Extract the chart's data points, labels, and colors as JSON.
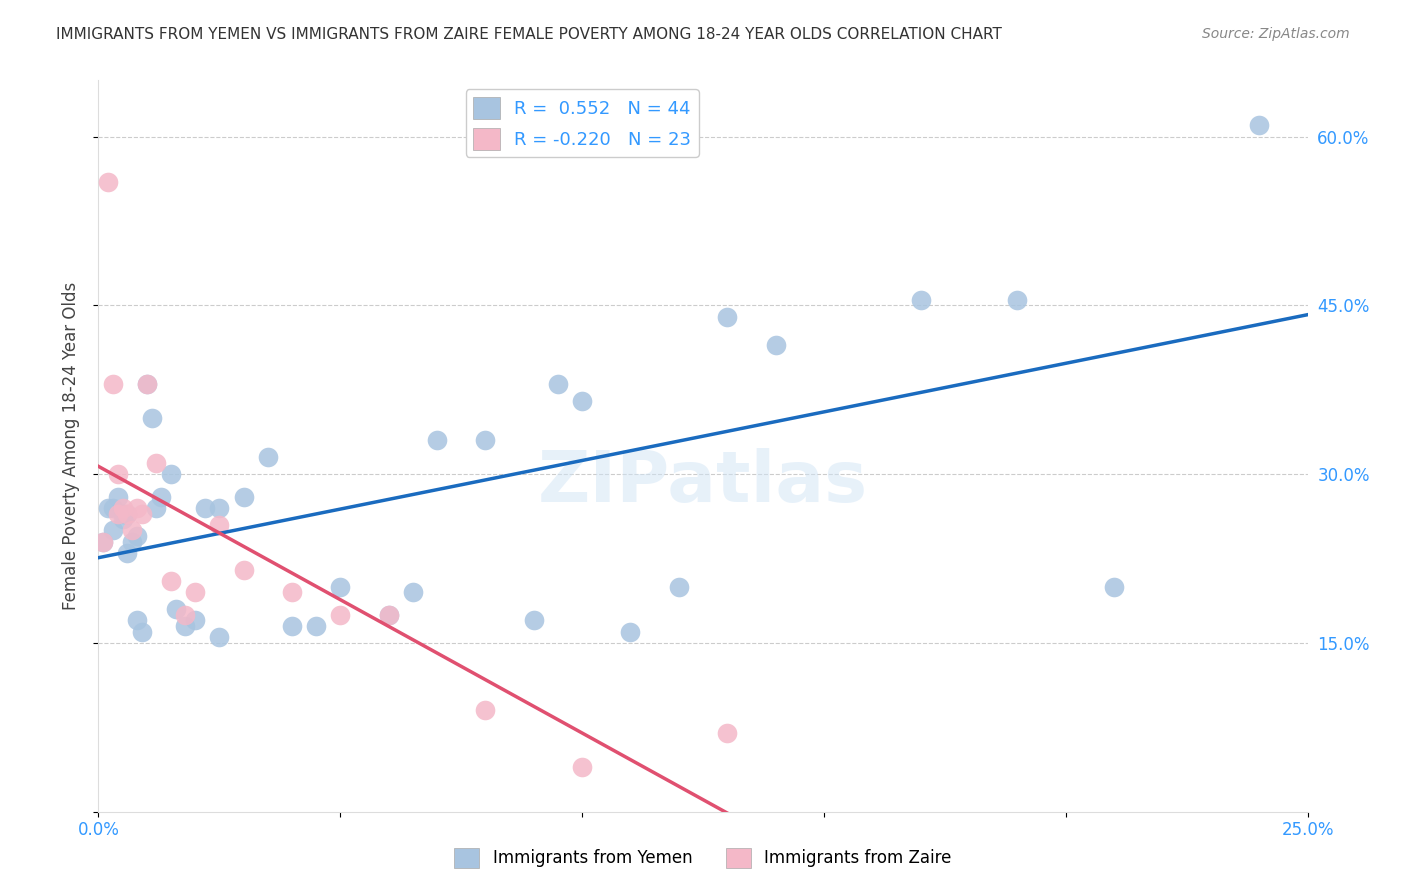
{
  "title": "IMMIGRANTS FROM YEMEN VS IMMIGRANTS FROM ZAIRE FEMALE POVERTY AMONG 18-24 YEAR OLDS CORRELATION CHART",
  "source": "Source: ZipAtlas.com",
  "xlabel_bottom": "",
  "ylabel": "Female Poverty Among 18-24 Year Olds",
  "x_ticks": [
    0.0,
    0.05,
    0.1,
    0.15,
    0.2,
    0.25
  ],
  "x_tick_labels": [
    "0.0%",
    "",
    "",
    "",
    "",
    "25.0%"
  ],
  "y_ticks": [
    0.0,
    0.15,
    0.3,
    0.45,
    0.6
  ],
  "y_tick_labels": [
    "",
    "15.0%",
    "30.0%",
    "45.0%",
    "60.0%"
  ],
  "xlim": [
    0.0,
    0.25
  ],
  "ylim": [
    0.0,
    0.65
  ],
  "legend_R_yemen": "0.552",
  "legend_N_yemen": "44",
  "legend_R_zaire": "-0.220",
  "legend_N_zaire": "23",
  "yemen_color": "#a8c4e0",
  "zaire_color": "#f4b8c8",
  "trend_yemen_color": "#1a6bbf",
  "trend_zaire_color": "#e05070",
  "trend_zaire_dashed_color": "#e8b0be",
  "watermark": "ZIPatlas",
  "yemen_x": [
    0.001,
    0.002,
    0.003,
    0.003,
    0.004,
    0.005,
    0.005,
    0.006,
    0.006,
    0.007,
    0.008,
    0.008,
    0.009,
    0.01,
    0.011,
    0.012,
    0.013,
    0.015,
    0.016,
    0.018,
    0.02,
    0.022,
    0.025,
    0.025,
    0.03,
    0.035,
    0.04,
    0.045,
    0.05,
    0.06,
    0.065,
    0.07,
    0.08,
    0.09,
    0.095,
    0.1,
    0.11,
    0.12,
    0.13,
    0.14,
    0.17,
    0.19,
    0.21,
    0.24
  ],
  "yemen_y": [
    0.24,
    0.27,
    0.27,
    0.25,
    0.28,
    0.265,
    0.26,
    0.265,
    0.23,
    0.24,
    0.245,
    0.17,
    0.16,
    0.38,
    0.35,
    0.27,
    0.28,
    0.3,
    0.18,
    0.165,
    0.17,
    0.27,
    0.27,
    0.155,
    0.28,
    0.315,
    0.165,
    0.165,
    0.2,
    0.175,
    0.195,
    0.33,
    0.33,
    0.17,
    0.38,
    0.365,
    0.16,
    0.2,
    0.44,
    0.415,
    0.455,
    0.455,
    0.2,
    0.61
  ],
  "zaire_x": [
    0.001,
    0.002,
    0.003,
    0.004,
    0.004,
    0.005,
    0.006,
    0.007,
    0.008,
    0.009,
    0.01,
    0.012,
    0.015,
    0.018,
    0.02,
    0.025,
    0.03,
    0.04,
    0.05,
    0.06,
    0.08,
    0.1,
    0.13
  ],
  "zaire_y": [
    0.24,
    0.56,
    0.38,
    0.3,
    0.265,
    0.27,
    0.265,
    0.25,
    0.27,
    0.265,
    0.38,
    0.31,
    0.205,
    0.175,
    0.195,
    0.255,
    0.215,
    0.195,
    0.175,
    0.175,
    0.09,
    0.04,
    0.07
  ]
}
